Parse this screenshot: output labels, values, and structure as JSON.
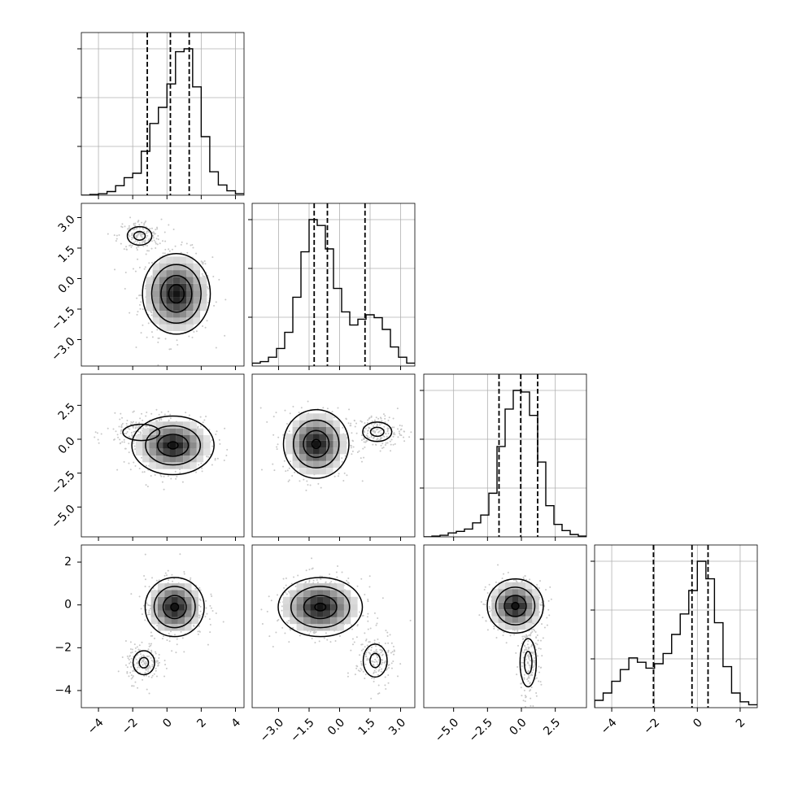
{
  "chart_data": {
    "type": "corner",
    "n_params": 4,
    "grid": true,
    "colors": {
      "line": "#000000",
      "scatter": "#c8c8c8",
      "grid": "#b0b0b0",
      "background": "#ffffff"
    },
    "params": [
      {
        "index": 0,
        "range": [
          -5,
          4.5
        ],
        "ticks": [
          -4,
          -2,
          0,
          2,
          4
        ],
        "tick_labels": [
          "−4",
          "−2",
          "0",
          "2",
          "4"
        ],
        "quantiles": [
          -1.15,
          0.2,
          1.3
        ],
        "bin_edges": [
          -5,
          -4.5,
          -4,
          -3.5,
          -3,
          -2.5,
          -2,
          -1.5,
          -1,
          -0.5,
          0,
          0.5,
          1,
          1.5,
          2,
          2.5,
          3,
          3.5,
          4,
          4.5
        ],
        "hist_counts": [
          0,
          0.005,
          0.01,
          0.025,
          0.065,
          0.12,
          0.15,
          0.3,
          0.49,
          0.6,
          0.76,
          0.98,
          1.0,
          0.74,
          0.4,
          0.16,
          0.07,
          0.03,
          0.01
        ]
      },
      {
        "index": 1,
        "range": [
          -4.3,
          3.7
        ],
        "ticks": [
          -3.0,
          -1.5,
          0.0,
          1.5,
          3.0
        ],
        "tick_labels": [
          "−3.0",
          "−1.5",
          "0.0",
          "1.5",
          "3.0"
        ],
        "quantiles": [
          -1.25,
          -0.6,
          1.25
        ],
        "bin_edges": [
          -4.3,
          -3.9,
          -3.5,
          -3.1,
          -2.7,
          -2.3,
          -1.9,
          -1.5,
          -1.1,
          -0.7,
          -0.3,
          0.1,
          0.5,
          0.9,
          1.3,
          1.7,
          2.1,
          2.5,
          2.9,
          3.3,
          3.7
        ],
        "hist_counts": [
          0.02,
          0.03,
          0.06,
          0.12,
          0.23,
          0.47,
          0.78,
          1.0,
          0.96,
          0.8,
          0.53,
          0.37,
          0.28,
          0.32,
          0.35,
          0.33,
          0.25,
          0.13,
          0.06,
          0.02
        ]
      },
      {
        "index": 2,
        "range": [
          -7.2,
          4.8
        ],
        "ticks": [
          -5.0,
          -2.5,
          0.0,
          2.5
        ],
        "tick_labels": [
          "−5.0",
          "−2.5",
          "0.0",
          "2.5"
        ],
        "quantiles": [
          -1.65,
          -0.05,
          1.2
        ],
        "bin_edges": [
          -7.2,
          -6.6,
          -6.0,
          -5.4,
          -4.8,
          -4.2,
          -3.6,
          -3.0,
          -2.4,
          -1.8,
          -1.2,
          -0.6,
          0.0,
          0.6,
          1.2,
          1.8,
          2.4,
          3.0,
          3.6,
          4.2,
          4.8
        ],
        "hist_counts": [
          0,
          0.005,
          0.01,
          0.025,
          0.035,
          0.05,
          0.09,
          0.14,
          0.28,
          0.58,
          0.82,
          0.94,
          0.93,
          0.78,
          0.48,
          0.2,
          0.08,
          0.04,
          0.015,
          0.005
        ]
      },
      {
        "index": 3,
        "range": [
          -4.8,
          2.8
        ],
        "ticks": [
          -4,
          -2,
          0,
          2
        ],
        "tick_labels": [
          "−4",
          "−2",
          "0",
          "2"
        ],
        "quantiles": [
          -2.05,
          -0.25,
          0.5
        ],
        "bin_edges": [
          -4.8,
          -4.4,
          -4.0,
          -3.6,
          -3.2,
          -2.8,
          -2.4,
          -2.0,
          -1.6,
          -1.2,
          -0.8,
          -0.4,
          0.0,
          0.4,
          0.8,
          1.2,
          1.6,
          2.0,
          2.4,
          2.8
        ],
        "hist_counts": [
          0.05,
          0.1,
          0.18,
          0.26,
          0.34,
          0.31,
          0.27,
          0.3,
          0.37,
          0.5,
          0.64,
          0.8,
          1.0,
          0.88,
          0.58,
          0.28,
          0.1,
          0.04,
          0.02
        ]
      }
    ],
    "pairs": [
      {
        "x": 0,
        "y": 1,
        "modes": [
          {
            "center": [
              0.55,
              -0.75
            ],
            "sigma": [
              0.9,
              0.9
            ],
            "contours": [
              0.5,
              1.0,
              1.6,
              2.2
            ]
          },
          {
            "center": [
              -1.6,
              2.1
            ],
            "sigma": [
              0.55,
              0.35
            ],
            "contours": [
              0.6,
              1.3
            ]
          }
        ]
      },
      {
        "x": 0,
        "y": 2,
        "modes": [
          {
            "center": [
              0.35,
              -0.45
            ],
            "sigma": [
              1.0,
              0.9
            ],
            "contours": [
              0.3,
              0.9,
              1.6,
              2.4
            ]
          },
          {
            "center": [
              -1.5,
              0.5
            ],
            "sigma": [
              0.9,
              0.5
            ],
            "contours": [
              1.2
            ]
          }
        ]
      },
      {
        "x": 1,
        "y": 2,
        "modes": [
          {
            "center": [
              -1.15,
              -0.35
            ],
            "sigma": [
              0.7,
              1.1
            ],
            "contours": [
              0.3,
              0.9,
              1.6,
              2.3
            ]
          },
          {
            "center": [
              1.85,
              0.55
            ],
            "sigma": [
              0.55,
              0.55
            ],
            "contours": [
              0.6,
              1.3
            ]
          }
        ]
      },
      {
        "x": 0,
        "y": 3,
        "modes": [
          {
            "center": [
              0.45,
              -0.1
            ],
            "sigma": [
              0.75,
              0.6
            ],
            "contours": [
              0.3,
              0.9,
              1.6,
              2.3
            ]
          },
          {
            "center": [
              -1.35,
              -2.7
            ],
            "sigma": [
              0.45,
              0.4
            ],
            "contours": [
              0.6,
              1.4
            ]
          }
        ]
      },
      {
        "x": 1,
        "y": 3,
        "modes": [
          {
            "center": [
              -0.95,
              -0.1
            ],
            "sigma": [
              0.9,
              0.6
            ],
            "contours": [
              0.3,
              0.9,
              1.6,
              2.3
            ]
          },
          {
            "center": [
              1.75,
              -2.6
            ],
            "sigma": [
              0.42,
              0.55
            ],
            "contours": [
              0.6,
              1.4
            ]
          }
        ]
      },
      {
        "x": 2,
        "y": 3,
        "modes": [
          {
            "center": [
              -0.45,
              -0.05
            ],
            "sigma": [
              0.9,
              0.55
            ],
            "contours": [
              0.3,
              0.9,
              1.6,
              2.3
            ]
          },
          {
            "center": [
              0.5,
              -2.7
            ],
            "sigma": [
              0.4,
              0.75
            ],
            "contours": [
              0.7,
              1.5
            ]
          }
        ]
      }
    ]
  }
}
